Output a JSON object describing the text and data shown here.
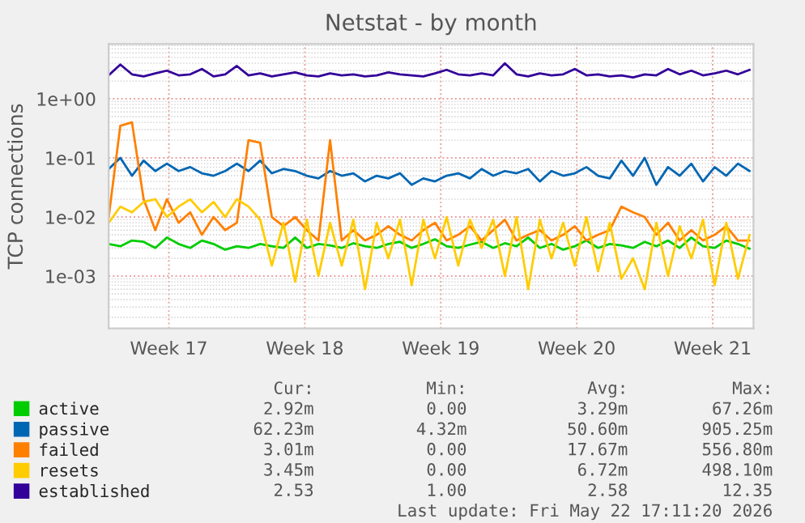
{
  "chart_data": {
    "type": "line",
    "title": "Netstat - by month",
    "ylabel": "TCP connections",
    "x": [
      "2026-04-19T12:00",
      "2026-04-20T02:24",
      "2026-04-20T16:48",
      "2026-04-21T07:12",
      "2026-04-21T21:36",
      "2026-04-22T12:00",
      "2026-04-23T02:24",
      "2026-04-23T16:48",
      "2026-04-24T07:12",
      "2026-04-24T21:36",
      "2026-04-25T12:00",
      "2026-04-26T02:24",
      "2026-04-26T16:48",
      "2026-04-27T07:12",
      "2026-04-27T21:36",
      "2026-04-28T12:00",
      "2026-04-29T02:24",
      "2026-04-29T16:48",
      "2026-04-30T07:12",
      "2026-04-30T21:36",
      "2026-05-01T12:00",
      "2026-05-02T02:24",
      "2026-05-02T16:48",
      "2026-05-03T07:12",
      "2026-05-03T21:36",
      "2026-05-04T12:00",
      "2026-05-05T02:24",
      "2026-05-05T16:48",
      "2026-05-06T07:12",
      "2026-05-06T21:36",
      "2026-05-07T12:00",
      "2026-05-08T02:24",
      "2026-05-08T16:48",
      "2026-05-09T07:12",
      "2026-05-09T21:36",
      "2026-05-10T12:00",
      "2026-05-11T02:24",
      "2026-05-11T16:48",
      "2026-05-12T07:12",
      "2026-05-12T21:36",
      "2026-05-13T12:00",
      "2026-05-14T02:24",
      "2026-05-14T16:48",
      "2026-05-15T07:12",
      "2026-05-15T21:36",
      "2026-05-16T12:00",
      "2026-05-17T02:24",
      "2026-05-17T16:48",
      "2026-05-18T07:12",
      "2026-05-18T21:36",
      "2026-05-19T12:00",
      "2026-05-20T02:24",
      "2026-05-20T16:48",
      "2026-05-21T07:12",
      "2026-05-21T21:36",
      "2026-05-22T12:00"
    ],
    "series": [
      {
        "name": "active",
        "color": "#00cc00",
        "values": [
          0.0035,
          0.0032,
          0.004,
          0.0038,
          0.003,
          0.0045,
          0.0035,
          0.003,
          0.004,
          0.0035,
          0.0028,
          0.0032,
          0.003,
          0.0035,
          0.0032,
          0.003,
          0.0045,
          0.003,
          0.0035,
          0.0033,
          0.003,
          0.0036,
          0.0032,
          0.003,
          0.0035,
          0.0038,
          0.003,
          0.0035,
          0.0042,
          0.0032,
          0.003,
          0.0034,
          0.0038,
          0.003,
          0.0036,
          0.0032,
          0.0045,
          0.003,
          0.0035,
          0.0028,
          0.0032,
          0.004,
          0.003,
          0.0035,
          0.0033,
          0.003,
          0.0038,
          0.0032,
          0.004,
          0.003,
          0.0045,
          0.0032,
          0.003,
          0.004,
          0.0035,
          0.0029
        ]
      },
      {
        "name": "passive",
        "color": "#0066b3",
        "values": [
          0.065,
          0.1,
          0.05,
          0.09,
          0.06,
          0.08,
          0.06,
          0.07,
          0.055,
          0.05,
          0.06,
          0.08,
          0.06,
          0.09,
          0.055,
          0.065,
          0.06,
          0.05,
          0.045,
          0.06,
          0.05,
          0.055,
          0.04,
          0.05,
          0.045,
          0.055,
          0.035,
          0.045,
          0.04,
          0.05,
          0.055,
          0.045,
          0.065,
          0.05,
          0.06,
          0.055,
          0.065,
          0.04,
          0.06,
          0.05,
          0.055,
          0.07,
          0.05,
          0.045,
          0.09,
          0.05,
          0.1,
          0.035,
          0.07,
          0.05,
          0.08,
          0.04,
          0.07,
          0.05,
          0.08,
          0.06
        ]
      },
      {
        "name": "failed",
        "color": "#ff8000",
        "values": [
          0.01,
          0.35,
          0.4,
          0.02,
          0.006,
          0.02,
          0.008,
          0.012,
          0.005,
          0.01,
          0.006,
          0.008,
          0.2,
          0.18,
          0.01,
          0.007,
          0.01,
          0.006,
          0.004,
          0.2,
          0.004,
          0.006,
          0.004,
          0.005,
          0.007,
          0.005,
          0.004,
          0.006,
          0.008,
          0.004,
          0.005,
          0.007,
          0.004,
          0.006,
          0.009,
          0.004,
          0.005,
          0.006,
          0.004,
          0.005,
          0.007,
          0.004,
          0.005,
          0.006,
          0.015,
          0.012,
          0.01,
          0.005,
          0.008,
          0.004,
          0.006,
          0.004,
          0.005,
          0.007,
          0.004,
          0.004
        ]
      },
      {
        "name": "resets",
        "color": "#ffcc00",
        "values": [
          0.008,
          0.015,
          0.012,
          0.018,
          0.02,
          0.01,
          0.015,
          0.02,
          0.012,
          0.018,
          0.01,
          0.02,
          0.015,
          0.009,
          0.0015,
          0.008,
          0.0008,
          0.009,
          0.001,
          0.008,
          0.0015,
          0.009,
          0.0006,
          0.008,
          0.002,
          0.009,
          0.0007,
          0.009,
          0.002,
          0.01,
          0.0015,
          0.009,
          0.003,
          0.009,
          0.001,
          0.01,
          0.0006,
          0.009,
          0.002,
          0.008,
          0.0015,
          0.01,
          0.0012,
          0.008,
          0.0009,
          0.002,
          0.0006,
          0.008,
          0.001,
          0.007,
          0.002,
          0.009,
          0.0007,
          0.008,
          0.0009,
          0.005
        ]
      },
      {
        "name": "established",
        "color": "#330099",
        "values": [
          2.5,
          3.8,
          2.6,
          2.4,
          2.7,
          3.0,
          2.5,
          2.6,
          3.2,
          2.4,
          2.6,
          3.6,
          2.5,
          2.7,
          2.4,
          2.6,
          2.8,
          2.5,
          2.4,
          2.7,
          2.5,
          2.6,
          2.4,
          2.5,
          2.8,
          2.6,
          2.5,
          2.4,
          2.7,
          3.1,
          2.6,
          2.5,
          2.7,
          2.5,
          4.0,
          2.6,
          2.4,
          2.7,
          2.5,
          2.6,
          3.2,
          2.5,
          2.6,
          2.4,
          2.5,
          2.3,
          2.6,
          2.5,
          3.2,
          2.6,
          3.0,
          2.5,
          2.7,
          3.0,
          2.6,
          3.1
        ]
      }
    ],
    "log": "y",
    "ylim": [
      0.00013,
      8.5
    ],
    "yticks": [
      {
        "value": 0.001,
        "label": "1e-03"
      },
      {
        "value": 0.01,
        "label": "1e-02"
      },
      {
        "value": 0.1,
        "label": "1e-01"
      },
      {
        "value": 1,
        "label": "1e+00"
      }
    ],
    "xlim": [
      "2026-04-19T12:00",
      "2026-05-22T16:48"
    ],
    "xticks": [
      {
        "value": "2026-04-22T14:24",
        "label": "Week 17"
      },
      {
        "value": "2026-04-29T14:24",
        "label": "Week 18"
      },
      {
        "value": "2026-05-06T14:24",
        "label": "Week 19"
      },
      {
        "value": "2026-05-13T14:24",
        "label": "Week 20"
      },
      {
        "value": "2026-05-20T14:24",
        "label": "Week 21"
      }
    ],
    "grid": true,
    "legend": "bottom left",
    "marker": "none",
    "line_style": "solid",
    "annotations": [
      "Cur:",
      "Min:",
      "Avg:",
      "Max:",
      "2.92m",
      "0.00",
      "3.29m",
      "67.26m",
      "62.23m",
      "4.32m",
      "50.60m",
      "905.25m",
      "3.01m",
      "0.00",
      "17.67m",
      "556.80m",
      "3.45m",
      "0.00",
      "6.72m",
      "498.10m",
      "2.53",
      "1.00",
      "2.58",
      "12.35",
      "Last update: Fri May 22 17:11:20 2026"
    ]
  }
}
